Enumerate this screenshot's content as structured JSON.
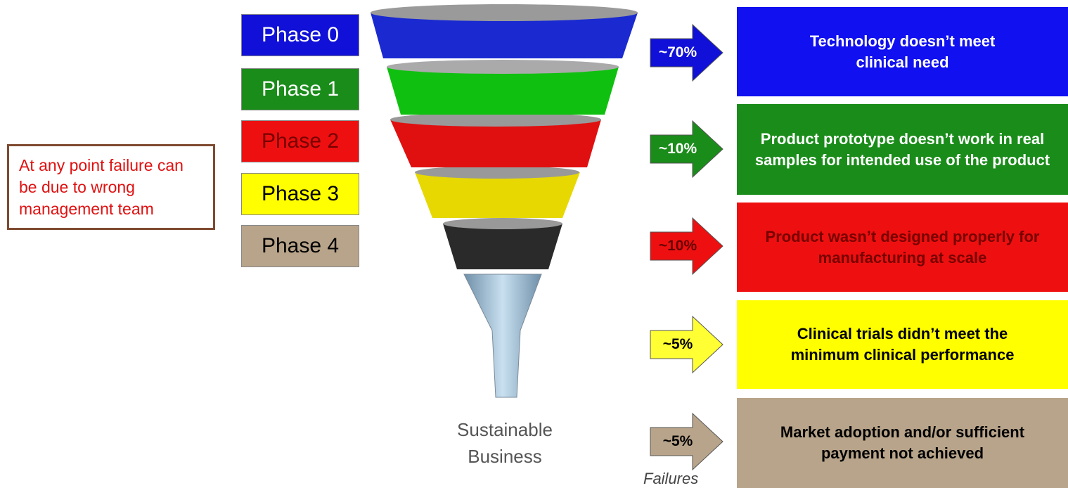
{
  "note": "At any point failure can be due to wrong management team",
  "phases": [
    "Phase 0",
    "Phase 1",
    "Phase 2",
    "Phase 3",
    "Phase 4"
  ],
  "funnel_bottom": "Sustainable Business",
  "failures": [
    {
      "share": "~70%",
      "reason": "Technology doesn’t meet clinical need"
    },
    {
      "share": "~10%",
      "reason": "Product prototype doesn’t work in real samples for intended use of the product"
    },
    {
      "share": "~10%",
      "reason": "Product wasn’t designed properly for manufacturing at scale"
    },
    {
      "share": "~5%",
      "reason": "Clinical trials didn’t meet the minimum clinical performance"
    },
    {
      "share": "~5%",
      "reason": "Market adoption and/or sufficient payment not achieved"
    }
  ],
  "failures_label": "Failures"
}
